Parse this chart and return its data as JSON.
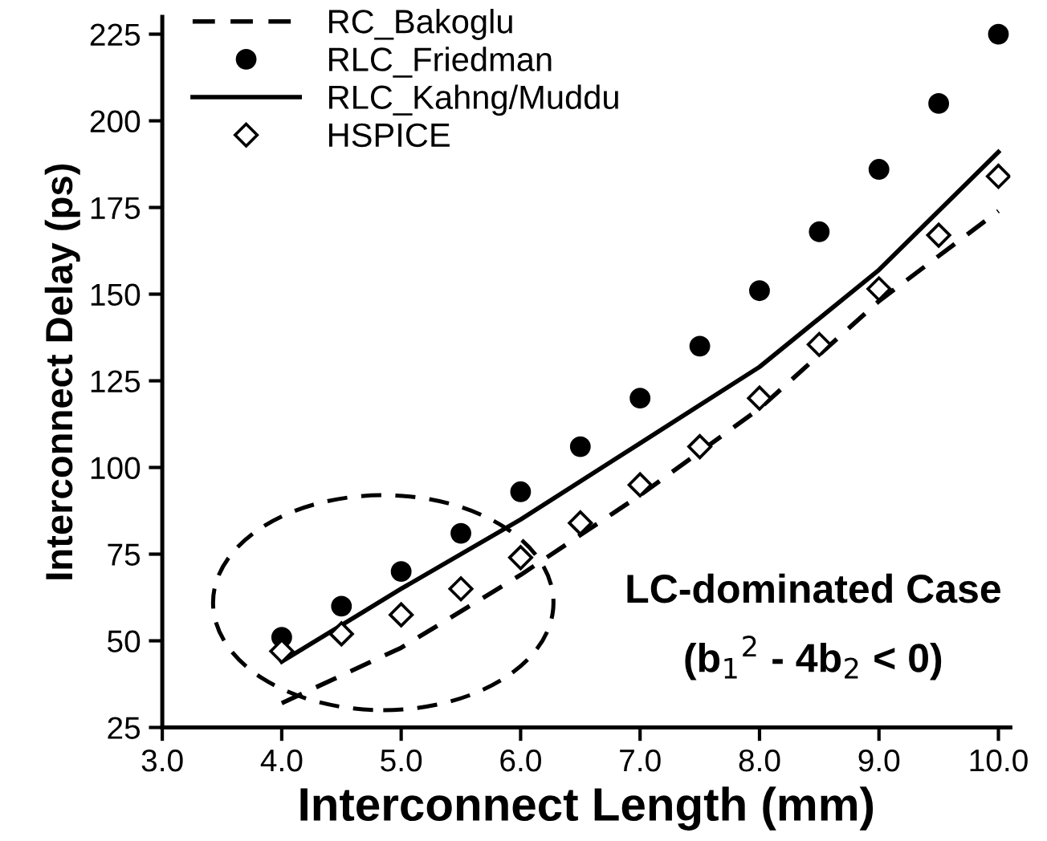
{
  "chart_data": {
    "type": "line",
    "xlabel": "Interconnect Length (mm)",
    "ylabel": "Interconnect Delay (ps)",
    "xlim": [
      3.0,
      10.1
    ],
    "ylim": [
      25,
      230
    ],
    "xticks": [
      {
        "value": 3,
        "label": "3.0"
      },
      {
        "value": 4,
        "label": "4.0"
      },
      {
        "value": 5,
        "label": "5.0"
      },
      {
        "value": 6,
        "label": "6.0"
      },
      {
        "value": 7,
        "label": "7.0"
      },
      {
        "value": 8,
        "label": "8.0"
      },
      {
        "value": 9,
        "label": "9.0"
      },
      {
        "value": 10,
        "label": "10.0"
      }
    ],
    "yticks": [
      25,
      50,
      75,
      100,
      125,
      150,
      175,
      200,
      225
    ],
    "grid": false,
    "legend": "top left",
    "series": [
      {
        "name": "RC_Bakoglu",
        "line_style": "dashed",
        "marker": "none",
        "color": "#000000",
        "x": [
          4.0,
          5.0,
          6.0,
          7.0,
          8.0,
          9.0,
          10.0
        ],
        "values": [
          32,
          48,
          69,
          92,
          117,
          148,
          174
        ]
      },
      {
        "name": "RLC_Friedman",
        "type": "scatter",
        "marker": "circle",
        "color": "#000000",
        "x": [
          4.0,
          4.5,
          5.0,
          5.5,
          6.0,
          6.5,
          7.0,
          7.5,
          8.0,
          8.5,
          9.0,
          9.5,
          10.0
        ],
        "values": [
          51,
          60,
          70,
          81,
          93,
          106,
          120,
          135,
          151,
          168,
          186,
          205,
          225
        ]
      },
      {
        "name": "RLC_Kahng/Muddu",
        "line_style": "solid",
        "marker": "none",
        "color": "#000000",
        "x": [
          4.0,
          5.0,
          6.0,
          7.0,
          8.0,
          9.0,
          10.0
        ],
        "values": [
          44,
          65,
          85,
          107,
          129,
          157,
          191
        ]
      },
      {
        "name": "HSPICE",
        "type": "scatter",
        "marker": "diamond",
        "color": "#000000",
        "x": [
          4.0,
          4.5,
          5.0,
          5.5,
          6.0,
          6.5,
          7.0,
          7.5,
          8.0,
          8.5,
          9.0,
          9.5,
          10.0
        ],
        "values": [
          47,
          52,
          57.5,
          65,
          74,
          84,
          95,
          106,
          120,
          135.5,
          151.5,
          167,
          184
        ]
      }
    ],
    "annotations": [
      "LC-dominated Case",
      "(b$_{1}$$^{2}$ - 4b$_{2}$ < 0)"
    ]
  }
}
